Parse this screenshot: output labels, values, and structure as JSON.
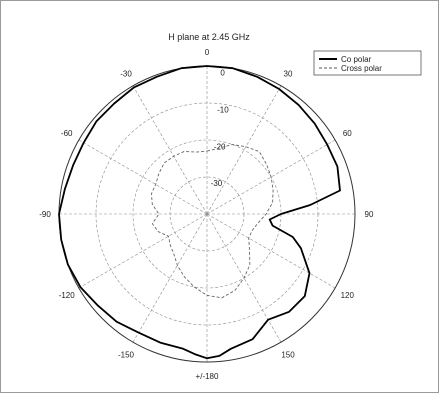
{
  "chart_data": {
    "type": "polar_line",
    "title": "H plane at 2.45 GHz",
    "angle_unit": "degrees",
    "angle_zero": "top",
    "angle_direction": "clockwise",
    "radial_unit": "dB",
    "radial_range": [
      -40,
      0
    ],
    "radial_ticks": [
      "0",
      "-10",
      "-20",
      "-30"
    ],
    "angle_ticks": [
      {
        "angle": 0,
        "label": "0"
      },
      {
        "angle": 30,
        "label": "30"
      },
      {
        "angle": 60,
        "label": "60"
      },
      {
        "angle": 90,
        "label": "90"
      },
      {
        "angle": 120,
        "label": "120"
      },
      {
        "angle": 150,
        "label": "150"
      },
      {
        "angle": 180,
        "label": "+/-180"
      },
      {
        "angle": -150,
        "label": "-150"
      },
      {
        "angle": -120,
        "label": "-120"
      },
      {
        "angle": -90,
        "label": "-90"
      },
      {
        "angle": -60,
        "label": "-60"
      },
      {
        "angle": -30,
        "label": "-30"
      }
    ],
    "grid": true,
    "legend_position": "top-right",
    "series": [
      {
        "name": "Co polar",
        "style": "solid",
        "color": "#000000",
        "angles": [
          0,
          10,
          20,
          30,
          40,
          50,
          60,
          70,
          80,
          85,
          90,
          95,
          100,
          105,
          110,
          120,
          130,
          140,
          150,
          160,
          170,
          175,
          180,
          185,
          190,
          200,
          210,
          220,
          230,
          240,
          250,
          260,
          270,
          280,
          290,
          300,
          310,
          320,
          330,
          340,
          350
        ],
        "values": [
          0,
          0,
          -0.5,
          -1,
          -1.5,
          -2,
          -2.5,
          -2.5,
          -3.5,
          -12,
          -20,
          -23,
          -22,
          -16,
          -13,
          -8,
          -5.5,
          -5.5,
          -7,
          -4,
          -3,
          -1.5,
          -1,
          -2,
          -3,
          -3,
          -3,
          -2,
          -1.5,
          -0.5,
          0,
          0,
          0,
          -1,
          -1.5,
          -1.5,
          -1,
          -1,
          -0.5,
          -0.5,
          0
        ]
      },
      {
        "name": "Cross polar",
        "style": "dashed",
        "color": "#666666",
        "angles": [
          0,
          10,
          20,
          30,
          40,
          50,
          60,
          70,
          80,
          90,
          100,
          110,
          120,
          130,
          140,
          150,
          160,
          170,
          180,
          190,
          200,
          210,
          220,
          230,
          240,
          250,
          260,
          270,
          280,
          290,
          300,
          310,
          320,
          330,
          340,
          350
        ],
        "values": [
          -23,
          -22,
          -20,
          -19,
          -18,
          -19,
          -20,
          -21,
          -22,
          -24,
          -26,
          -27,
          -27,
          -25,
          -22,
          -20,
          -18,
          -17,
          -18,
          -20,
          -22,
          -24,
          -26,
          -27,
          -28,
          -26,
          -25,
          -27,
          -25,
          -24,
          -24,
          -23,
          -22,
          -22,
          -22,
          -23
        ]
      }
    ]
  }
}
